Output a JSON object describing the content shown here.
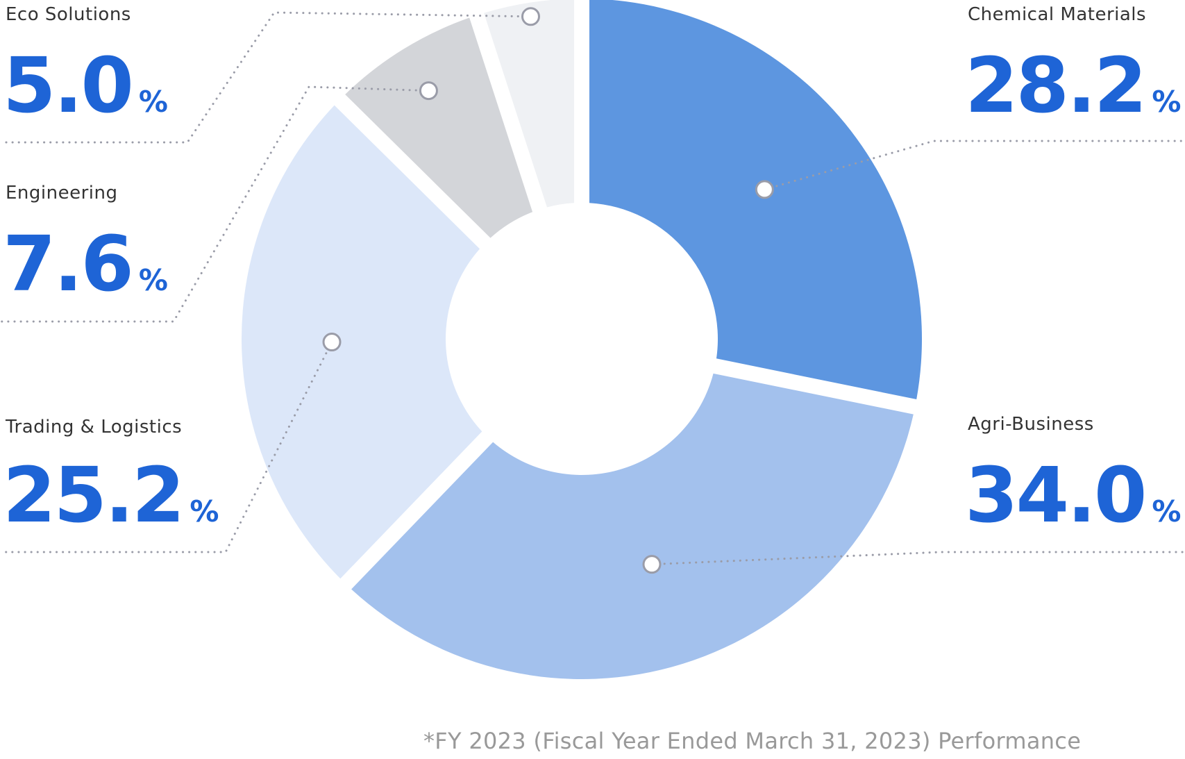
{
  "chart_data": {
    "type": "pie",
    "variant": "donut",
    "unit": "%",
    "slices": [
      {
        "label": "Chemical Materials",
        "value": 28.2,
        "color": "#5d96e0"
      },
      {
        "label": "Agri-Business",
        "value": 34.0,
        "color": "#a3c1ed"
      },
      {
        "label": "Trading & Logistics",
        "value": 25.2,
        "color": "#dce7f9"
      },
      {
        "label": "Engineering",
        "value": 7.6,
        "color": "#d3d5d9"
      },
      {
        "label": "Eco Solutions",
        "value": 5.0,
        "color": "#eff1f4"
      }
    ],
    "footnote": "*FY 2023 (Fiscal Year Ended March 31, 2023) Performance"
  },
  "colors": {
    "value_text": "#1e64d6",
    "label_text": "#333333",
    "leader_line": "#9a9ca8",
    "footnote_text": "#999999"
  }
}
